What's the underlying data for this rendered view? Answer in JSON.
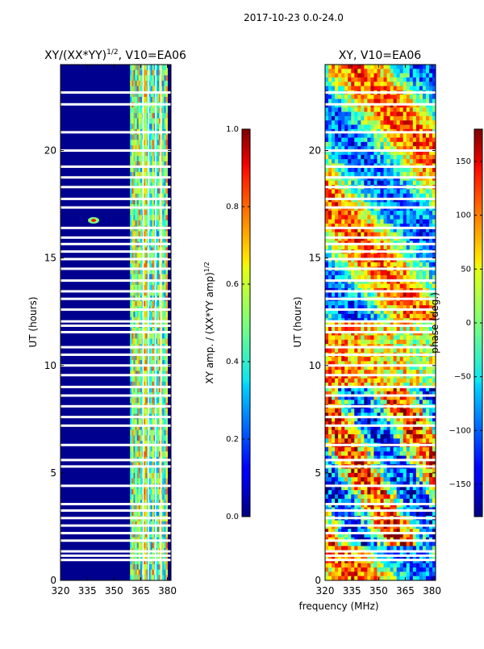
{
  "figure": {
    "suptitle": "2017-10-23 0.0-24.0"
  },
  "chart_data": [
    {
      "type": "heatmap",
      "title_main": "XY/(XX*YY)",
      "title_sup": "1/2",
      "title_rest": ", V10=EA06",
      "xlabel": "frequency (MHz)",
      "ylabel": "UT (hours)",
      "x_range": [
        320,
        382
      ],
      "y_range": [
        0,
        24
      ],
      "x_ticks": [
        320,
        335,
        350,
        365,
        380
      ],
      "y_ticks": [
        0,
        5,
        10,
        15,
        20
      ],
      "active_band_mhz": [
        359,
        380
      ],
      "colorbar": {
        "label_main": "XY amp. / (XX*YY amp)",
        "label_sup": "1/2",
        "range": [
          0.0,
          1.0
        ],
        "ticks": [
          "0.0",
          "0.2",
          "0.4",
          "0.6",
          "0.8",
          "1.0"
        ],
        "tick_values": [
          0.0,
          0.2,
          0.4,
          0.6,
          0.8,
          1.0
        ]
      }
    },
    {
      "type": "heatmap",
      "title": "XY, V10=EA06",
      "ylabel": "UT (hours)",
      "x_range": [
        320,
        382
      ],
      "y_range": [
        0,
        24
      ],
      "x_ticks": [
        320,
        335,
        350,
        365,
        380
      ],
      "y_ticks": [
        0,
        5,
        10,
        15,
        20
      ],
      "colorbar": {
        "label": "phase (deg.)",
        "range": [
          -180,
          180
        ],
        "ticks": [
          "150",
          "100",
          "50",
          "0",
          "−50",
          "−100",
          "−150"
        ],
        "tick_values": [
          150,
          100,
          50,
          0,
          -50,
          -100,
          -150
        ]
      }
    }
  ],
  "gaps_ut_hours": [
    0.95,
    1.15,
    1.35,
    1.85,
    2.2,
    2.55,
    2.9,
    3.25,
    3.55,
    4.4,
    5.3,
    5.6,
    6.3,
    7.2,
    7.6,
    8.1,
    8.6,
    9.0,
    9.55,
    10.0,
    10.5,
    10.85,
    11.55,
    11.85,
    12.05,
    12.6,
    13.1,
    13.45,
    13.95,
    14.5,
    14.95,
    15.3,
    15.65,
    15.95,
    16.4,
    17.35,
    17.75,
    18.3,
    18.75,
    19.25,
    20.0,
    20.85,
    22.15,
    22.7
  ]
}
